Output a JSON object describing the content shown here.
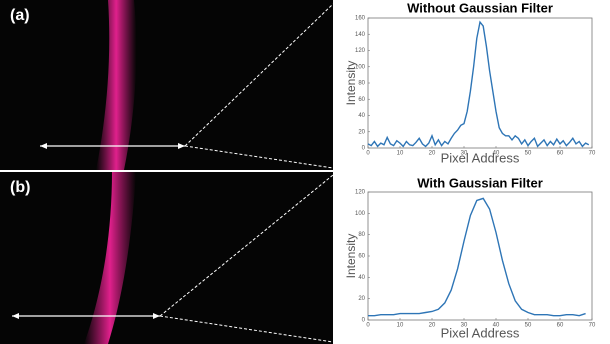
{
  "panel_labels": [
    "(a)",
    "(b)"
  ],
  "chart_data": [
    {
      "type": "line",
      "title": "Without Gaussian Filter",
      "x_label": "Pixel Address",
      "y_label": "Intensity",
      "color": "#2e75b6",
      "x": [
        0,
        1,
        2,
        3,
        4,
        5,
        6,
        7,
        8,
        9,
        10,
        11,
        12,
        13,
        14,
        15,
        16,
        17,
        18,
        19,
        20,
        21,
        22,
        23,
        24,
        25,
        26,
        27,
        28,
        29,
        30,
        31,
        32,
        33,
        34,
        35,
        36,
        37,
        38,
        39,
        40,
        41,
        42,
        43,
        44,
        45,
        46,
        47,
        48,
        49,
        50,
        51,
        52,
        53,
        54,
        55,
        56,
        57,
        58,
        59,
        60,
        61,
        62,
        63,
        64,
        65,
        66,
        67,
        68,
        69
      ],
      "values": [
        5,
        3,
        8,
        2,
        6,
        4,
        13,
        5,
        3,
        9,
        6,
        2,
        8,
        4,
        3,
        7,
        12,
        5,
        2,
        6,
        15,
        4,
        10,
        3,
        8,
        5,
        12,
        18,
        22,
        28,
        30,
        45,
        70,
        100,
        135,
        155,
        150,
        125,
        95,
        70,
        45,
        25,
        18,
        15,
        15,
        10,
        15,
        12,
        5,
        10,
        3,
        8,
        12,
        2,
        6,
        10,
        3,
        8,
        4,
        11,
        5,
        9,
        3,
        7,
        12,
        5,
        8,
        2,
        6,
        4
      ],
      "xlim": [
        0,
        70
      ],
      "xticks": [
        0,
        10,
        20,
        30,
        40,
        50,
        60,
        70
      ],
      "ylim": [
        0,
        160
      ],
      "yticks": [
        0,
        20,
        40,
        60,
        80,
        100,
        120,
        140,
        160
      ]
    },
    {
      "type": "line",
      "title": "With Gaussian Filter",
      "x_label": "Pixel Address",
      "y_label": "Intensity",
      "color": "#2e75b6",
      "x": [
        0,
        2,
        4,
        6,
        8,
        10,
        12,
        14,
        16,
        18,
        20,
        22,
        24,
        26,
        28,
        30,
        32,
        34,
        36,
        38,
        40,
        42,
        44,
        46,
        48,
        50,
        52,
        54,
        56,
        58,
        60,
        62,
        64,
        66,
        68
      ],
      "values": [
        4,
        4,
        5,
        5,
        5,
        6,
        6,
        6,
        6,
        7,
        8,
        10,
        16,
        28,
        48,
        74,
        98,
        112,
        114,
        104,
        82,
        56,
        34,
        18,
        10,
        7,
        5,
        5,
        5,
        4,
        4,
        5,
        5,
        4,
        6
      ],
      "xlim": [
        0,
        70
      ],
      "xticks": [
        0,
        10,
        20,
        30,
        40,
        50,
        60,
        70
      ],
      "ylim": [
        0,
        120
      ],
      "yticks": [
        0,
        20,
        40,
        60,
        80,
        100,
        120
      ]
    }
  ]
}
